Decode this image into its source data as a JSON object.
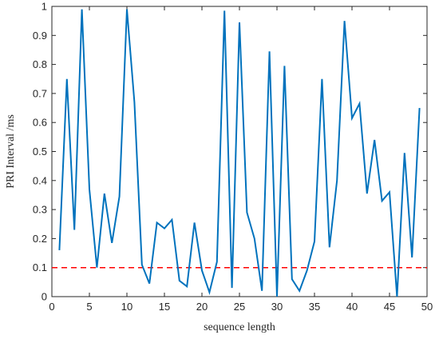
{
  "chart_data": {
    "type": "line",
    "xlabel": "sequence length",
    "ylabel": "PRI  Interval /ms",
    "xlim": [
      0,
      50
    ],
    "ylim": [
      0,
      1
    ],
    "xticks": [
      "0",
      "5",
      "10",
      "15",
      "20",
      "25",
      "30",
      "35",
      "40",
      "45",
      "50"
    ],
    "yticks": [
      "0",
      "0.1",
      "0.2",
      "0.3",
      "0.4",
      "0.5",
      "0.6",
      "0.7",
      "0.8",
      "0.9",
      "1"
    ],
    "grid": false,
    "legend": "none",
    "series": [
      {
        "color": "#0072BD",
        "x": [
          1,
          2,
          3,
          4,
          5,
          6,
          7,
          8,
          9,
          10,
          11,
          12,
          13,
          14,
          15,
          16,
          17,
          18,
          19,
          20,
          21,
          22,
          23,
          24,
          25,
          26,
          27,
          28,
          29,
          30,
          31,
          32,
          33,
          34,
          35,
          36,
          37,
          38,
          39,
          40,
          41,
          42,
          43,
          44,
          45,
          46,
          47,
          48,
          49
        ],
        "values": [
          0.16,
          0.75,
          0.23,
          0.99,
          0.37,
          0.1,
          0.355,
          0.185,
          0.345,
          0.99,
          0.67,
          0.11,
          0.045,
          0.255,
          0.235,
          0.265,
          0.055,
          0.035,
          0.255,
          0.09,
          0.015,
          0.12,
          0.985,
          0.03,
          0.945,
          0.29,
          0.2,
          0.02,
          0.845,
          0.0,
          0.795,
          0.06,
          0.02,
          0.09,
          0.19,
          0.75,
          0.17,
          0.4,
          0.95,
          0.615,
          0.665,
          0.355,
          0.54,
          0.33,
          0.36,
          0.0,
          0.495,
          0.135,
          0.65
        ]
      }
    ],
    "reference_line": {
      "y": 0.1,
      "color": "#FF0000",
      "style": "dashed"
    }
  }
}
